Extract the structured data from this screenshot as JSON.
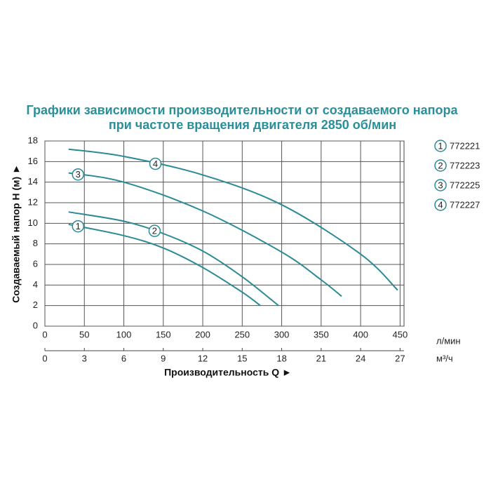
{
  "chart_data": {
    "type": "line",
    "title": "Графики зависимости производительности от создаваемого напора",
    "subtitle": "при частоте вращения двигателя 2850 об/мин",
    "x_label": "Производительность Q ►",
    "y_label": "Создаваемый напор H (м) ►",
    "x_unit": "л/мин",
    "x2_unit": "м³/ч",
    "xlim": [
      0,
      455
    ],
    "xticks": [
      0,
      50,
      100,
      150,
      200,
      250,
      300,
      350,
      400,
      450
    ],
    "x2lim": [
      0,
      27.3
    ],
    "x2ticks": [
      0,
      3,
      6,
      9,
      12,
      15,
      18,
      21,
      24,
      27
    ],
    "ylim": [
      0,
      18
    ],
    "yticks": [
      0,
      2,
      4,
      6,
      8,
      10,
      12,
      14,
      16,
      18
    ],
    "grid": true,
    "series": [
      {
        "name": "772221",
        "label": "1",
        "color": "#2a8a96",
        "x": [
          30,
          100,
          150,
          200,
          250,
          273
        ],
        "values": [
          9.9,
          8.8,
          7.6,
          5.7,
          3.3,
          2
        ]
      },
      {
        "name": "772223",
        "label": "2",
        "color": "#2a8a96",
        "x": [
          30,
          100,
          150,
          200,
          250,
          296
        ],
        "values": [
          11.1,
          10.2,
          9.0,
          7.3,
          4.8,
          2
        ]
      },
      {
        "name": "772225",
        "label": "3",
        "color": "#2a8a96",
        "x": [
          30,
          100,
          200,
          300,
          350,
          376
        ],
        "values": [
          14.9,
          14.0,
          11.2,
          7.2,
          4.5,
          2.9
        ]
      },
      {
        "name": "772227",
        "label": "4",
        "color": "#2a8a96",
        "x": [
          30,
          100,
          200,
          300,
          400,
          447
        ],
        "values": [
          17.2,
          16.5,
          14.7,
          11.8,
          7.0,
          3.5
        ]
      }
    ]
  }
}
